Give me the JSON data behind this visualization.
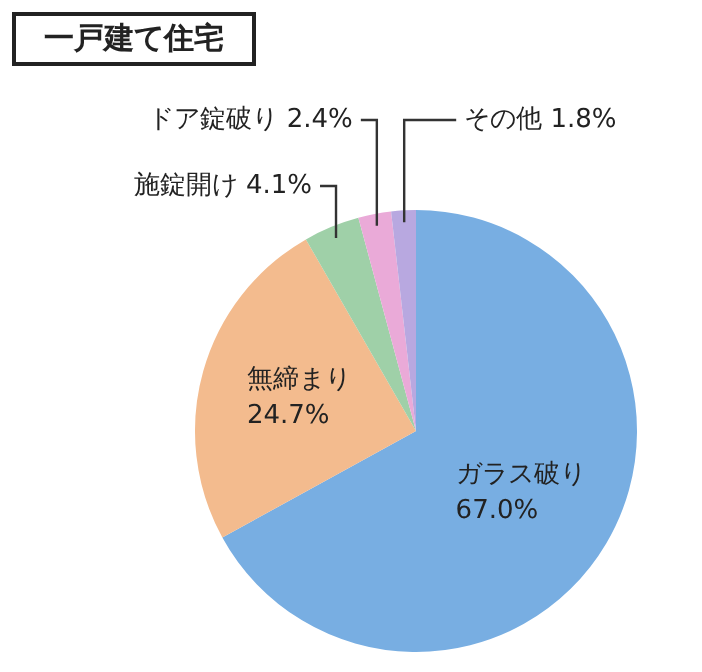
{
  "chart_data": {
    "type": "pie",
    "title": "一戸建て住宅",
    "categories": [
      "ガラス破り",
      "無締まり",
      "施錠開け",
      "ドア錠破り",
      "その他"
    ],
    "values": [
      67.0,
      24.7,
      4.1,
      2.4,
      1.8
    ],
    "value_labels": [
      "67.0%",
      "24.7%",
      "4.1%",
      "2.4%",
      "1.8%"
    ],
    "colors": [
      "#78aee2",
      "#f3bb8e",
      "#9fd0a8",
      "#eaaad8",
      "#b8a8e0"
    ],
    "legend": false
  }
}
